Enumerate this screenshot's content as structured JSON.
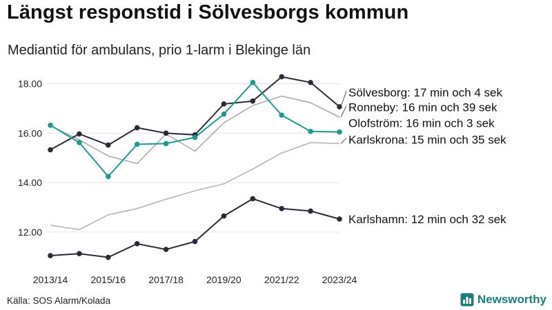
{
  "header": {
    "title": "Längst responstid i Sölvesborgs kommun",
    "subtitle": "Mediantid för ambulans, prio 1-larm i Blekinge län"
  },
  "footer": {
    "source": "Källa: SOS Alarm/Kolada",
    "brand": "Newsworthy",
    "brand_icon": "bar-chart-icon"
  },
  "chart_data": {
    "type": "line",
    "title": "Längst responstid i Sölvesborgs kommun",
    "subtitle": "Mediantid för ambulans, prio 1-larm i Blekinge län",
    "xlabel": "",
    "ylabel": "",
    "categories": [
      "2013/14",
      "2014/15",
      "2015/16",
      "2016/17",
      "2017/18",
      "2018/19",
      "2019/20",
      "2020/21",
      "2021/22",
      "2022/23",
      "2023/24"
    ],
    "x_tick_labels": [
      "2013/14",
      "2015/16",
      "2017/18",
      "2019/20",
      "2021/22",
      "2023/24"
    ],
    "y_ticks": [
      12,
      14,
      16,
      18
    ],
    "y_tick_labels": [
      "12.00",
      "14.00",
      "16.00",
      "18.00"
    ],
    "ylim": [
      10.8,
      18.6
    ],
    "grid": true,
    "legend": "direct labels at right end of lines",
    "series": [
      {
        "name": "Sölvesborg",
        "label": "Sölvesborg: 17 min och 4 sek",
        "color": "#2b2a3a",
        "markers": true,
        "label_leader": true,
        "values": [
          15.33,
          15.97,
          15.52,
          16.22,
          16.0,
          15.93,
          17.18,
          17.3,
          18.28,
          18.05,
          17.07
        ]
      },
      {
        "name": "Ronneby",
        "label": "Ronneby: 16 min och 39 sek",
        "color": "#ababab",
        "markers": false,
        "label_leader": true,
        "values": [
          16.3,
          15.73,
          15.08,
          14.77,
          15.97,
          15.27,
          16.42,
          17.12,
          17.5,
          17.23,
          16.65
        ]
      },
      {
        "name": "Olofström",
        "label": "Olofström: 16 min och 3 sek",
        "color": "#1b9a8e",
        "markers": true,
        "label_leader": false,
        "values": [
          16.32,
          15.62,
          14.25,
          15.55,
          15.58,
          15.83,
          16.77,
          18.05,
          16.73,
          16.07,
          16.05
        ]
      },
      {
        "name": "Karlskrona",
        "label": "Karlskrona: 15 min och 35 sek",
        "color": "#b5b5b5",
        "markers": false,
        "label_leader": true,
        "values": [
          12.28,
          12.1,
          12.7,
          12.95,
          13.33,
          13.67,
          13.95,
          14.55,
          15.2,
          15.62,
          15.58
        ]
      },
      {
        "name": "Karlshamn",
        "label": "Karlshamn: 12 min och 32 sek",
        "color": "#2b2a3a",
        "markers": true,
        "label_leader": false,
        "values": [
          11.05,
          11.13,
          10.98,
          11.53,
          11.3,
          11.62,
          12.65,
          13.35,
          12.95,
          12.85,
          12.53
        ]
      }
    ]
  }
}
